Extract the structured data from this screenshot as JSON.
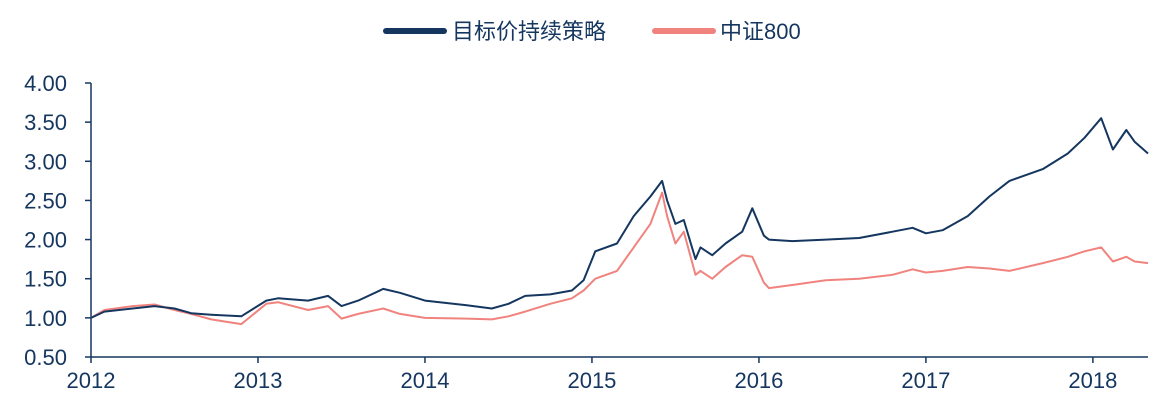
{
  "chart_data": {
    "type": "line",
    "title": "",
    "xlabel": "",
    "ylabel": "",
    "ylim": [
      0.5,
      4.0
    ],
    "xlim": [
      2012.0,
      2018.33
    ],
    "yticks": [
      "0.50",
      "1.00",
      "1.50",
      "2.00",
      "2.50",
      "3.00",
      "3.50",
      "4.00"
    ],
    "xticks": [
      "2012",
      "2013",
      "2014",
      "2015",
      "2016",
      "2017",
      "2018"
    ],
    "grid": false,
    "legend_position": "top-center",
    "series": [
      {
        "name": "目标价持续策略",
        "color": "#14365f",
        "x": [
          2012.0,
          2012.08,
          2012.25,
          2012.38,
          2012.5,
          2012.6,
          2012.72,
          2012.9,
          2013.05,
          2013.12,
          2013.3,
          2013.42,
          2013.5,
          2013.6,
          2013.75,
          2013.85,
          2014.0,
          2014.25,
          2014.4,
          2014.5,
          2014.6,
          2014.75,
          2014.88,
          2014.95,
          2015.02,
          2015.15,
          2015.25,
          2015.35,
          2015.42,
          2015.45,
          2015.5,
          2015.55,
          2015.62,
          2015.65,
          2015.72,
          2015.8,
          2015.9,
          2015.96,
          2016.03,
          2016.06,
          2016.2,
          2016.4,
          2016.6,
          2016.8,
          2016.92,
          2017.0,
          2017.1,
          2017.25,
          2017.38,
          2017.5,
          2017.7,
          2017.85,
          2017.95,
          2018.05,
          2018.12,
          2018.2,
          2018.25,
          2018.33
        ],
        "values": [
          1.0,
          1.08,
          1.12,
          1.15,
          1.12,
          1.06,
          1.04,
          1.02,
          1.22,
          1.25,
          1.22,
          1.28,
          1.15,
          1.22,
          1.37,
          1.32,
          1.22,
          1.16,
          1.12,
          1.18,
          1.28,
          1.3,
          1.35,
          1.48,
          1.85,
          1.95,
          2.3,
          2.55,
          2.75,
          2.5,
          2.2,
          2.25,
          1.75,
          1.9,
          1.8,
          1.95,
          2.1,
          2.4,
          2.05,
          2.0,
          1.98,
          2.0,
          2.02,
          2.1,
          2.15,
          2.08,
          2.12,
          2.3,
          2.55,
          2.75,
          2.9,
          3.1,
          3.3,
          3.55,
          3.15,
          3.4,
          3.25,
          3.1
        ]
      },
      {
        "name": "中证800",
        "color": "#f0837e",
        "x": [
          2012.0,
          2012.08,
          2012.25,
          2012.38,
          2012.5,
          2012.6,
          2012.72,
          2012.9,
          2013.05,
          2013.12,
          2013.3,
          2013.42,
          2013.5,
          2013.6,
          2013.75,
          2013.85,
          2014.0,
          2014.25,
          2014.4,
          2014.5,
          2014.6,
          2014.75,
          2014.88,
          2014.95,
          2015.02,
          2015.15,
          2015.25,
          2015.35,
          2015.42,
          2015.45,
          2015.5,
          2015.55,
          2015.62,
          2015.65,
          2015.72,
          2015.8,
          2015.9,
          2015.96,
          2016.03,
          2016.06,
          2016.2,
          2016.4,
          2016.6,
          2016.8,
          2016.92,
          2017.0,
          2017.1,
          2017.25,
          2017.38,
          2017.5,
          2017.7,
          2017.85,
          2017.95,
          2018.05,
          2018.12,
          2018.2,
          2018.25,
          2018.33
        ],
        "values": [
          1.0,
          1.1,
          1.15,
          1.17,
          1.1,
          1.05,
          0.98,
          0.92,
          1.18,
          1.2,
          1.1,
          1.15,
          0.99,
          1.05,
          1.12,
          1.05,
          1.0,
          0.99,
          0.98,
          1.02,
          1.08,
          1.18,
          1.25,
          1.35,
          1.5,
          1.6,
          1.9,
          2.2,
          2.6,
          2.3,
          1.95,
          2.1,
          1.55,
          1.6,
          1.5,
          1.65,
          1.8,
          1.78,
          1.45,
          1.38,
          1.42,
          1.48,
          1.5,
          1.55,
          1.62,
          1.58,
          1.6,
          1.65,
          1.63,
          1.6,
          1.7,
          1.78,
          1.85,
          1.9,
          1.72,
          1.78,
          1.72,
          1.7
        ]
      }
    ]
  }
}
